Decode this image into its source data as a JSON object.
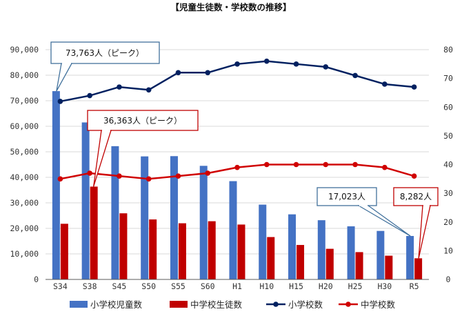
{
  "colors": {
    "elementary_bar": "#4472C4",
    "junior_bar": "#C00000",
    "elementary_line": "#002060",
    "junior_line": "#D00000",
    "callout_blue": "#41719C",
    "callout_red": "#C00000",
    "grid": "#D9D9D9",
    "axis": "#595959"
  },
  "chart_data": {
    "type": "bar",
    "title": "【児童生徒数・学校数の推移】",
    "categories": [
      "S34",
      "S38",
      "S45",
      "S50",
      "S55",
      "S60",
      "H1",
      "H10",
      "H15",
      "H20",
      "H25",
      "H30",
      "R5"
    ],
    "y_left": {
      "lim": [
        0,
        90000
      ],
      "ticks": [
        "0",
        "10,000",
        "20,000",
        "30,000",
        "40,000",
        "50,000",
        "60,000",
        "70,000",
        "80,000",
        "90,000"
      ]
    },
    "y_right": {
      "lim": [
        0,
        80
      ],
      "ticks": [
        "0",
        "10",
        "20",
        "30",
        "40",
        "50",
        "60",
        "70",
        "80"
      ]
    },
    "series": [
      {
        "name": "小学校児童数",
        "kind": "bar",
        "axis": "left",
        "values": [
          73763,
          61500,
          52200,
          48200,
          48300,
          44500,
          38500,
          29300,
          25500,
          23200,
          20800,
          19000,
          17023
        ]
      },
      {
        "name": "中学校生徒数",
        "kind": "bar",
        "axis": "left",
        "values": [
          21800,
          36363,
          25900,
          23500,
          22000,
          22800,
          21500,
          16600,
          13500,
          12000,
          10700,
          9300,
          8282
        ]
      },
      {
        "name": "小学校数",
        "kind": "line",
        "axis": "right",
        "values": [
          62,
          64,
          67,
          66,
          72,
          72,
          75,
          76,
          75,
          74,
          71,
          68,
          67
        ]
      },
      {
        "name": "中学校数",
        "kind": "line",
        "axis": "right",
        "values": [
          35,
          37,
          36,
          35,
          36,
          37,
          39,
          40,
          40,
          40,
          40,
          39,
          36
        ]
      }
    ],
    "legend": [
      "小学校児童数",
      "中学校生徒数",
      "小学校数",
      "中学校数"
    ],
    "legend_position": "bottom",
    "grid": true,
    "annotations": [
      {
        "text": "73,763人（ピーク）",
        "color": "blue",
        "series": 0,
        "index": 0
      },
      {
        "text": "36,363人（ピーク）",
        "color": "red",
        "series": 1,
        "index": 1
      },
      {
        "text": "17,023人",
        "color": "blue",
        "series": 0,
        "index": 12
      },
      {
        "text": "8,282人",
        "color": "red",
        "series": 1,
        "index": 12
      }
    ]
  }
}
